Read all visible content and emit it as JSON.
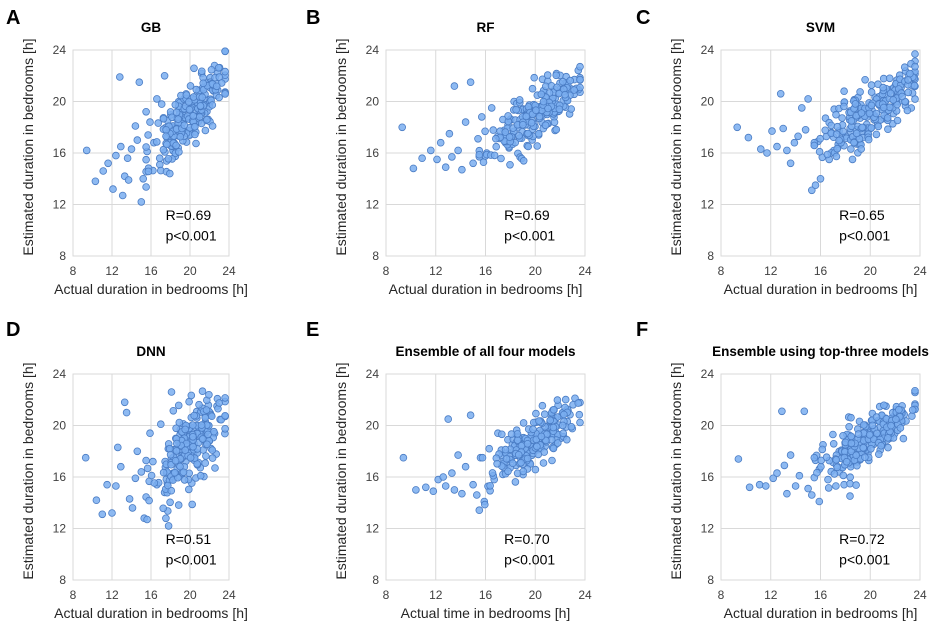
{
  "chart_data": [
    {
      "type": "scatter",
      "letter": "A",
      "title": "GB",
      "xlabel": "Actual duration in bedrooms [h]",
      "ylabel": "Estimated duration in bedrooms [h]",
      "xlim": [
        8,
        24
      ],
      "ylim": [
        8,
        24
      ],
      "xticks": [
        8,
        12,
        16,
        20,
        24
      ],
      "yticks": [
        8,
        12,
        16,
        20,
        24
      ],
      "r_text": "R=0.69",
      "p_text": "p<0.001",
      "r": 0.69,
      "ymean": 19.0,
      "ysd": 2.2,
      "seed": 11,
      "points": [
        [
          9.4,
          16.2
        ],
        [
          10.3,
          13.8
        ],
        [
          11.1,
          14.6
        ],
        [
          11.6,
          15.2
        ],
        [
          12.1,
          13.2
        ],
        [
          12.4,
          15.8
        ],
        [
          12.8,
          21.9
        ],
        [
          12.9,
          16.5
        ],
        [
          13.1,
          12.7
        ],
        [
          13.3,
          14.2
        ],
        [
          13.6,
          15.6
        ],
        [
          13.7,
          13.9
        ],
        [
          14.0,
          16.3
        ],
        [
          14.4,
          18.1
        ],
        [
          14.6,
          17.0
        ],
        [
          14.8,
          21.5
        ],
        [
          15.0,
          12.2
        ],
        [
          15.2,
          14.0
        ],
        [
          15.5,
          19.2
        ],
        [
          15.7,
          17.4
        ],
        [
          15.9,
          18.4
        ],
        [
          16.3,
          16.8
        ],
        [
          16.6,
          20.2
        ],
        [
          16.9,
          15.1
        ],
        [
          17.1,
          19.8
        ],
        [
          17.4,
          22.0
        ],
        [
          17.7,
          18.5
        ],
        [
          18.1,
          16.5
        ]
      ]
    },
    {
      "type": "scatter",
      "letter": "B",
      "title": "RF",
      "xlabel": "Actual duration in bedrooms [h]",
      "ylabel": "Estimated duration in bedrooms [h]",
      "xlim": [
        8,
        24
      ],
      "ylim": [
        8,
        24
      ],
      "xticks": [
        8,
        12,
        16,
        20,
        24
      ],
      "yticks": [
        8,
        12,
        16,
        20,
        24
      ],
      "r_text": "R=0.69",
      "p_text": "p<0.001",
      "r": 0.69,
      "ymean": 18.9,
      "ysd": 1.8,
      "seed": 23,
      "points": [
        [
          9.3,
          18.0
        ],
        [
          10.2,
          14.8
        ],
        [
          10.9,
          15.6
        ],
        [
          11.6,
          16.2
        ],
        [
          12.1,
          15.5
        ],
        [
          12.4,
          16.8
        ],
        [
          12.8,
          14.9
        ],
        [
          13.1,
          17.5
        ],
        [
          13.3,
          15.7
        ],
        [
          13.5,
          21.2
        ],
        [
          13.8,
          16.2
        ],
        [
          14.1,
          14.7
        ],
        [
          14.4,
          18.4
        ],
        [
          14.8,
          21.5
        ],
        [
          15.0,
          15.2
        ],
        [
          15.4,
          17.1
        ],
        [
          15.7,
          18.8
        ],
        [
          16.1,
          16.0
        ],
        [
          16.5,
          19.5
        ],
        [
          17.0,
          17.3
        ],
        [
          17.4,
          18.6
        ],
        [
          17.9,
          16.4
        ],
        [
          18.3,
          20.0
        ]
      ]
    },
    {
      "type": "scatter",
      "letter": "C",
      "title": "SVM",
      "xlabel": "Actual duration in bedrooms [h]",
      "ylabel": "Estimated duration in bedrooms [h]",
      "xlim": [
        8,
        24
      ],
      "ylim": [
        8,
        24
      ],
      "xticks": [
        8,
        12,
        16,
        20,
        24
      ],
      "yticks": [
        8,
        12,
        16,
        20,
        24
      ],
      "r_text": "R=0.65",
      "p_text": "p<0.001",
      "r": 0.65,
      "ymean": 19.2,
      "ysd": 2.0,
      "seed": 37,
      "points": [
        [
          9.3,
          18.0
        ],
        [
          10.2,
          17.2
        ],
        [
          11.2,
          16.3
        ],
        [
          11.7,
          16.0
        ],
        [
          12.1,
          17.7
        ],
        [
          12.5,
          16.5
        ],
        [
          12.8,
          20.6
        ],
        [
          13.0,
          17.9
        ],
        [
          13.3,
          16.2
        ],
        [
          13.6,
          15.2
        ],
        [
          13.9,
          16.8
        ],
        [
          14.2,
          17.3
        ],
        [
          14.5,
          19.5
        ],
        [
          14.8,
          17.8
        ],
        [
          15.0,
          20.2
        ],
        [
          15.3,
          13.1
        ],
        [
          15.6,
          13.5
        ],
        [
          15.8,
          16.9
        ],
        [
          16.0,
          14.0
        ],
        [
          16.4,
          18.7
        ],
        [
          16.7,
          15.5
        ],
        [
          17.1,
          19.4
        ],
        [
          17.5,
          16.8
        ],
        [
          17.9,
          20.8
        ]
      ]
    },
    {
      "type": "scatter",
      "letter": "D",
      "title": "DNN",
      "xlabel": "Actual duration in bedrooms [h]",
      "ylabel": "Estimated duration in bedrooms [h]",
      "xlim": [
        8,
        24
      ],
      "ylim": [
        8,
        24
      ],
      "xticks": [
        8,
        12,
        16,
        20,
        24
      ],
      "yticks": [
        8,
        12,
        16,
        20,
        24
      ],
      "r_text": "R=0.51",
      "p_text": "p<0.001",
      "r": 0.51,
      "ymean": 18.3,
      "ysd": 2.5,
      "seed": 53,
      "points": [
        [
          9.3,
          17.5
        ],
        [
          10.4,
          14.2
        ],
        [
          11.0,
          13.1
        ],
        [
          11.5,
          15.4
        ],
        [
          12.0,
          13.2
        ],
        [
          12.4,
          15.3
        ],
        [
          12.6,
          18.3
        ],
        [
          12.9,
          16.8
        ],
        [
          13.3,
          21.8
        ],
        [
          13.5,
          21.0
        ],
        [
          13.8,
          14.3
        ],
        [
          14.1,
          13.6
        ],
        [
          14.4,
          15.9
        ],
        [
          14.6,
          18.0
        ],
        [
          15.0,
          16.4
        ],
        [
          15.3,
          12.8
        ],
        [
          15.6,
          12.7
        ],
        [
          15.9,
          19.4
        ],
        [
          16.2,
          17.2
        ],
        [
          16.6,
          15.4
        ],
        [
          17.0,
          20.1
        ],
        [
          17.4,
          14.8
        ],
        [
          17.8,
          12.2
        ],
        [
          18.1,
          22.6
        ],
        [
          18.5,
          16.3
        ]
      ]
    },
    {
      "type": "scatter",
      "letter": "E",
      "title": "Ensemble of all four models",
      "xlabel": "Actual time in bedrooms [h]",
      "ylabel": "Estimated duration in bedrooms [h]",
      "xlim": [
        8,
        24
      ],
      "ylim": [
        8,
        24
      ],
      "xticks": [
        8,
        12,
        16,
        20,
        24
      ],
      "yticks": [
        8,
        12,
        16,
        20,
        24
      ],
      "r_text": "R=0.70",
      "p_text": "p<0.001",
      "r": 0.7,
      "ymean": 18.8,
      "ysd": 1.9,
      "seed": 71,
      "points": [
        [
          9.4,
          17.5
        ],
        [
          10.4,
          15.0
        ],
        [
          11.2,
          15.2
        ],
        [
          11.8,
          14.9
        ],
        [
          12.2,
          15.8
        ],
        [
          12.6,
          16.0
        ],
        [
          12.8,
          15.3
        ],
        [
          13.0,
          20.5
        ],
        [
          13.3,
          16.3
        ],
        [
          13.5,
          15.0
        ],
        [
          13.8,
          17.7
        ],
        [
          14.1,
          14.7
        ],
        [
          14.4,
          16.8
        ],
        [
          14.8,
          20.8
        ],
        [
          15.0,
          15.4
        ],
        [
          15.3,
          14.6
        ],
        [
          15.6,
          17.5
        ],
        [
          15.9,
          14.1
        ],
        [
          16.3,
          18.2
        ],
        [
          16.7,
          15.8
        ],
        [
          17.0,
          19.4
        ],
        [
          17.4,
          16.2
        ],
        [
          17.8,
          18.9
        ]
      ]
    },
    {
      "type": "scatter",
      "letter": "F",
      "title": "Ensemble using top-three models",
      "xlabel": "Actual duration in bedrooms [h]",
      "ylabel": "Estimated duration in bedrooms [h]",
      "xlim": [
        8,
        24
      ],
      "ylim": [
        8,
        24
      ],
      "xticks": [
        8,
        12,
        16,
        20,
        24
      ],
      "yticks": [
        8,
        12,
        16,
        20,
        24
      ],
      "r_text": "R=0.72",
      "p_text": "p<0.001",
      "r": 0.72,
      "ymean": 19.0,
      "ysd": 1.8,
      "seed": 89,
      "points": [
        [
          9.4,
          17.4
        ],
        [
          10.3,
          15.2
        ],
        [
          11.1,
          15.4
        ],
        [
          11.6,
          15.3
        ],
        [
          12.2,
          15.9
        ],
        [
          12.5,
          16.3
        ],
        [
          12.9,
          21.1
        ],
        [
          13.1,
          16.9
        ],
        [
          13.3,
          14.7
        ],
        [
          13.6,
          17.7
        ],
        [
          14.0,
          15.3
        ],
        [
          14.3,
          16.1
        ],
        [
          14.7,
          21.1
        ],
        [
          15.0,
          15.1
        ],
        [
          15.3,
          14.6
        ],
        [
          15.6,
          17.3
        ],
        [
          15.9,
          14.1
        ],
        [
          16.2,
          18.5
        ],
        [
          16.6,
          15.8
        ],
        [
          17.0,
          19.3
        ],
        [
          17.5,
          16.4
        ],
        [
          17.9,
          15.4
        ],
        [
          18.3,
          19.9
        ]
      ]
    }
  ]
}
